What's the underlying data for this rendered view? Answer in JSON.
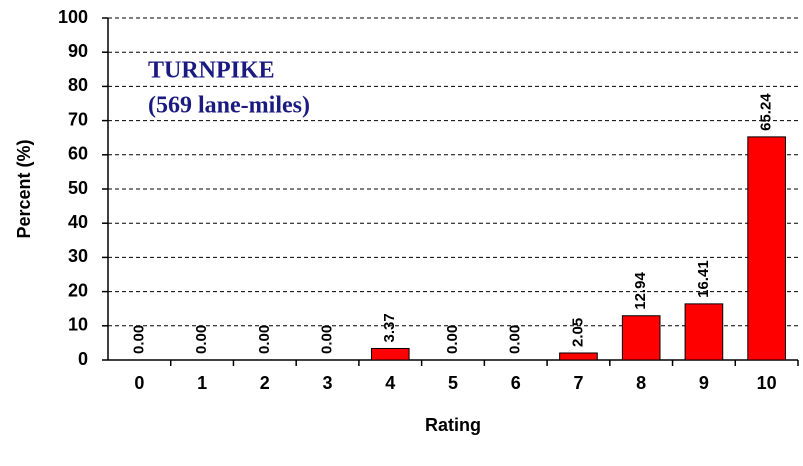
{
  "chart_data": {
    "type": "bar",
    "categories": [
      "0",
      "1",
      "2",
      "3",
      "4",
      "5",
      "6",
      "7",
      "8",
      "9",
      "10"
    ],
    "values": [
      0,
      0,
      0,
      0,
      3.37,
      0,
      0,
      2.05,
      12.94,
      16.41,
      65.24
    ],
    "value_labels": [
      "0.00",
      "0.00",
      "0.00",
      "0.00",
      "3.37",
      "0.00",
      "0.00",
      "2.05",
      "12.94",
      "16.41",
      "65.24"
    ],
    "color": "#ff0000",
    "xlabel": "Rating",
    "ylabel": "Percent (%)",
    "annotations": [
      "TURNPIKE",
      "(569 lane-miles)"
    ],
    "ylim": [
      0,
      100
    ],
    "yticks": [
      0,
      10,
      20,
      30,
      40,
      50,
      60,
      70,
      80,
      90,
      100
    ],
    "grid": true
  }
}
